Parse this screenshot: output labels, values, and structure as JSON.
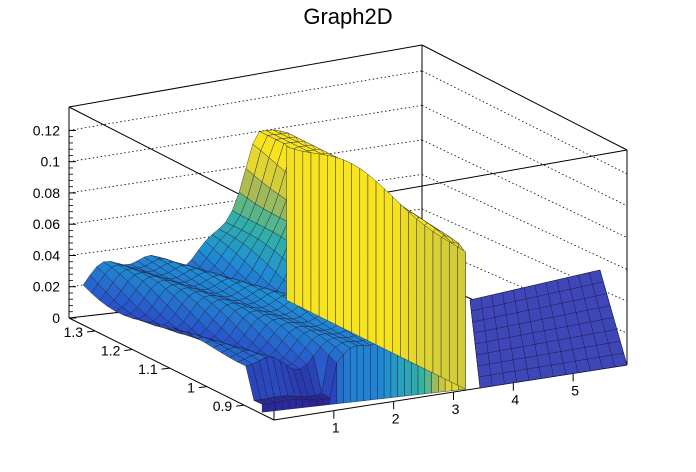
{
  "chart_data": {
    "type": "surface3d",
    "title": "Graph2D",
    "xlabel": "",
    "ylabel": "",
    "zlabel": "",
    "x_ticks": [
      "1",
      "2",
      "3",
      "4",
      "5"
    ],
    "y_ticks": [
      "0.9",
      "1",
      "1.1",
      "1.2",
      "1.3"
    ],
    "z_ticks": [
      "0",
      "0.02",
      "0.04",
      "0.06",
      "0.08",
      "0.1",
      "0.12"
    ],
    "xlim": [
      0,
      5.9
    ],
    "ylim": [
      0.82,
      1.37
    ],
    "zlim": [
      0,
      0.135
    ],
    "grid": true,
    "colormap": "kBird (viridis-like: blue to yellow)",
    "surface_summary": {
      "description_points": [
        {
          "x": 0.1,
          "y": 1.3,
          "z": 0.025
        },
        {
          "x": 1.0,
          "y": 1.2,
          "z": 0.03
        },
        {
          "x": 1.5,
          "y": 1.0,
          "z": 0.04
        },
        {
          "x": 2.0,
          "y": 1.1,
          "z": 0.05
        },
        {
          "x": 2.5,
          "y": 1.2,
          "z": 0.065
        },
        {
          "x": 3.0,
          "y": 1.0,
          "z": 0.08
        },
        {
          "x": 3.2,
          "y": 1.15,
          "z": 0.1
        },
        {
          "x": 3.3,
          "y": 1.3,
          "z": 0.09
        },
        {
          "x": 3.5,
          "y": 1.1,
          "z": 0.0
        },
        {
          "x": 4.5,
          "y": 1.1,
          "z": 0.0
        },
        {
          "x": 5.5,
          "y": 1.1,
          "z": 0.0
        }
      ]
    }
  }
}
